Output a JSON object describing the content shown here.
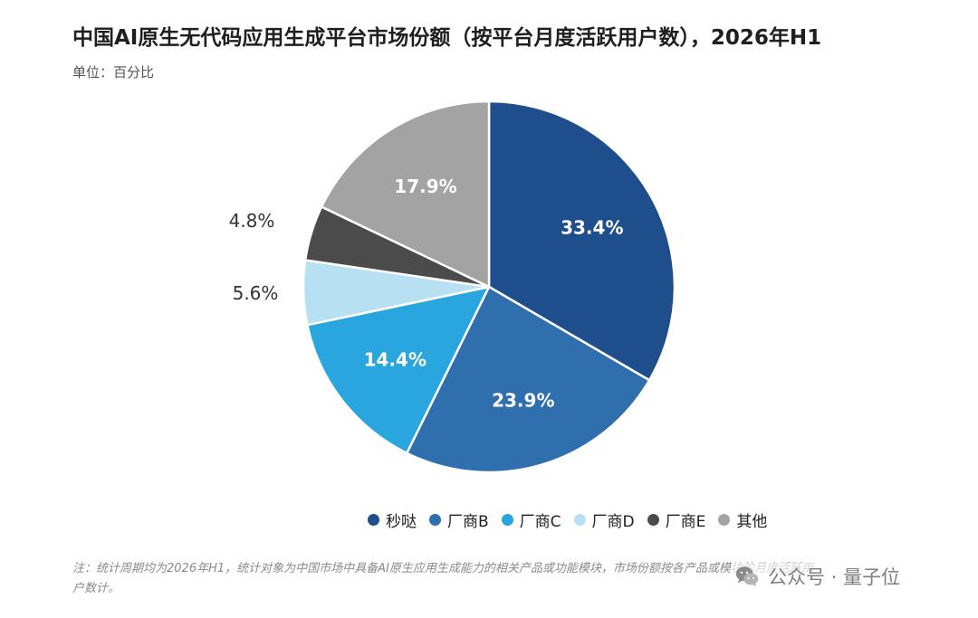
{
  "header": {
    "title": "中国AI原生无代码应用生成平台市场份额（按平台月度活跃用户数），2026年H1",
    "unit_label": "单位：百分比"
  },
  "chart_data": {
    "type": "pie",
    "categories": [
      "秒哒",
      "厂商B",
      "厂商C",
      "厂商D",
      "厂商E",
      "其他"
    ],
    "values": [
      33.4,
      23.9,
      14.4,
      5.6,
      4.8,
      17.9
    ],
    "data_labels": [
      "33.4%",
      "23.9%",
      "14.4%",
      "5.6%",
      "4.8%",
      "17.9%"
    ],
    "colors": [
      "#1f4e8c",
      "#2f6fae",
      "#2aa6df",
      "#b7e1f3",
      "#4b4b4b",
      "#a3a3a3"
    ],
    "start_angle_deg": 0,
    "direction": "clockwise",
    "legend_position": "bottom"
  },
  "footer": {
    "note": "注：统计周期均为2026年H1，统计对象为中国市场中具备AI原生应用生成能力的相关产品或功能模块，市场份额按各产品或模块的月度活跃用户数计。",
    "watermark_text": "公众号 · 量子位",
    "watermark_icon": "wechat-icon"
  }
}
